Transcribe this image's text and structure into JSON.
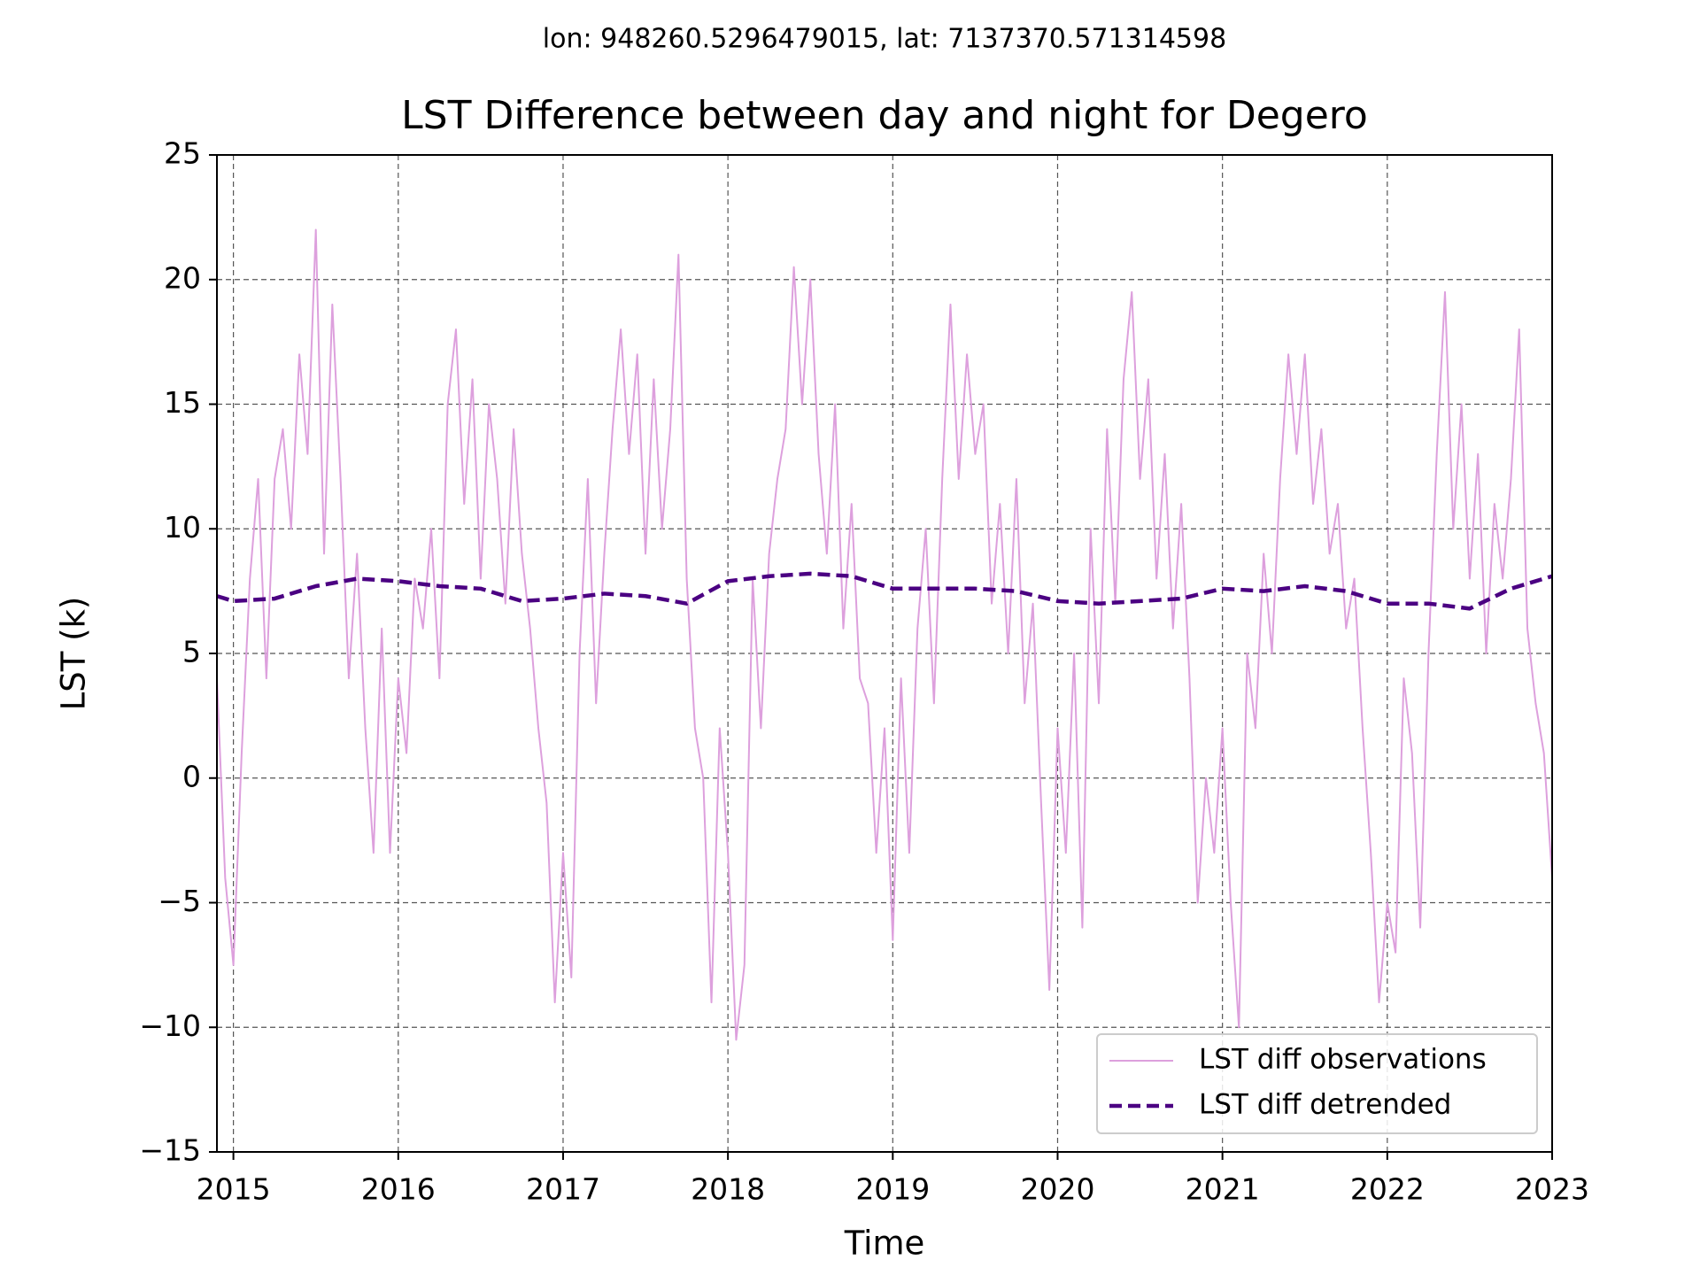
{
  "chart_data": {
    "type": "line",
    "subtitle": "lon: 948260.5296479015, lat: 7137370.571314598",
    "title": "LST Difference between day and night for Degero",
    "x_label": "Time",
    "y_label": "LST (k)",
    "xlim": [
      2014.9,
      2023
    ],
    "xticks": [
      2015,
      2016,
      2017,
      2018,
      2019,
      2020,
      2021,
      2022,
      2023
    ],
    "ylim": [
      -15,
      25
    ],
    "yticks": [
      {
        "value": -15,
        "label": "−15"
      },
      {
        "value": -10,
        "label": "−10"
      },
      {
        "value": -5,
        "label": "−5"
      },
      0,
      5,
      10,
      15,
      20,
      25
    ],
    "grid": true,
    "legend": "lower right",
    "series": [
      {
        "name": "LST diff observations",
        "color": "#dda0dd",
        "style": "solid",
        "x": [
          2014.9,
          2014.95,
          2015,
          2015.05,
          2015.1,
          2015.15,
          2015.2,
          2015.25,
          2015.3,
          2015.35,
          2015.4,
          2015.45,
          2015.5,
          2015.55,
          2015.6,
          2015.65,
          2015.7,
          2015.75,
          2015.8,
          2015.85,
          2015.9,
          2015.95,
          2016,
          2016.05,
          2016.1,
          2016.15,
          2016.2,
          2016.25,
          2016.3,
          2016.35,
          2016.4,
          2016.45,
          2016.5,
          2016.55,
          2016.6,
          2016.65,
          2016.7,
          2016.75,
          2016.8,
          2016.85,
          2016.9,
          2016.95,
          2017,
          2017.05,
          2017.1,
          2017.15,
          2017.2,
          2017.25,
          2017.3,
          2017.35,
          2017.4,
          2017.45,
          2017.5,
          2017.55,
          2017.6,
          2017.65,
          2017.7,
          2017.75,
          2017.8,
          2017.85,
          2017.9,
          2017.95,
          2018,
          2018.05,
          2018.1,
          2018.15,
          2018.2,
          2018.25,
          2018.3,
          2018.35,
          2018.4,
          2018.45,
          2018.5,
          2018.55,
          2018.6,
          2018.65,
          2018.7,
          2018.75,
          2018.8,
          2018.85,
          2018.9,
          2018.95,
          2019,
          2019.05,
          2019.1,
          2019.15,
          2019.2,
          2019.25,
          2019.3,
          2019.35,
          2019.4,
          2019.45,
          2019.5,
          2019.55,
          2019.6,
          2019.65,
          2019.7,
          2019.75,
          2019.8,
          2019.85,
          2019.9,
          2019.95,
          2020,
          2020.05,
          2020.1,
          2020.15,
          2020.2,
          2020.25,
          2020.3,
          2020.35,
          2020.4,
          2020.45,
          2020.5,
          2020.55,
          2020.6,
          2020.65,
          2020.7,
          2020.75,
          2020.8,
          2020.85,
          2020.9,
          2020.95,
          2021,
          2021.05,
          2021.1,
          2021.15,
          2021.2,
          2021.25,
          2021.3,
          2021.35,
          2021.4,
          2021.45,
          2021.5,
          2021.55,
          2021.6,
          2021.65,
          2021.7,
          2021.75,
          2021.8,
          2021.85,
          2021.9,
          2021.95,
          2022,
          2022.05,
          2022.1,
          2022.15,
          2022.2,
          2022.25,
          2022.3,
          2022.35,
          2022.4,
          2022.45,
          2022.5,
          2022.55,
          2022.6,
          2022.65,
          2022.7,
          2022.75,
          2022.8,
          2022.85,
          2022.9,
          2022.95,
          2023
        ],
        "values": [
          4,
          -4,
          -7.5,
          1,
          8,
          12,
          4,
          12,
          14,
          10,
          17,
          13,
          22,
          9,
          19,
          12,
          4,
          9,
          2,
          -3,
          6,
          -3,
          4,
          1,
          8,
          6,
          10,
          4,
          15,
          18,
          11,
          16,
          8,
          15,
          12,
          7,
          14,
          9,
          6,
          2,
          -1,
          -9,
          -3,
          -8,
          5,
          12,
          3,
          9,
          14,
          18,
          13,
          17,
          9,
          16,
          10,
          14,
          21,
          8,
          2,
          0,
          -9,
          2,
          -3,
          -10.5,
          -7.5,
          8,
          2,
          9,
          12,
          14,
          20.5,
          15,
          20,
          13,
          9,
          15,
          6,
          11,
          4,
          3,
          -3,
          2,
          -6.5,
          4,
          -3,
          6,
          10,
          3,
          12,
          19,
          12,
          17,
          13,
          15,
          7,
          11,
          5,
          12,
          3,
          7,
          -1,
          -8.5,
          2,
          -3,
          5,
          -6,
          10,
          3,
          14,
          7,
          16,
          19.5,
          12,
          16,
          8,
          13,
          6,
          11,
          4,
          -5,
          0,
          -3,
          2,
          -5,
          -10,
          5,
          2,
          9,
          5,
          12,
          17,
          13,
          17,
          11,
          14,
          9,
          11,
          6,
          8,
          2,
          -3,
          -9,
          -5,
          -7,
          4,
          1,
          -6,
          5,
          13,
          19.5,
          10,
          15,
          8,
          13,
          5,
          11,
          8,
          12,
          18,
          6,
          3,
          1,
          -4
        ]
      },
      {
        "name": "LST diff detrended",
        "color": "#4b0082",
        "style": "dashed",
        "x": [
          2014.9,
          2015,
          2015.25,
          2015.5,
          2015.75,
          2016,
          2016.25,
          2016.5,
          2016.75,
          2017,
          2017.25,
          2017.5,
          2017.75,
          2018,
          2018.25,
          2018.5,
          2018.75,
          2019,
          2019.25,
          2019.5,
          2019.75,
          2020,
          2020.25,
          2020.5,
          2020.75,
          2021,
          2021.25,
          2021.5,
          2021.75,
          2022,
          2022.25,
          2022.5,
          2022.75,
          2023
        ],
        "values": [
          7.3,
          7.1,
          7.2,
          7.7,
          8.0,
          7.9,
          7.7,
          7.6,
          7.1,
          7.2,
          7.4,
          7.3,
          7.0,
          7.9,
          8.1,
          8.2,
          8.1,
          7.6,
          7.6,
          7.6,
          7.5,
          7.1,
          7.0,
          7.1,
          7.2,
          7.6,
          7.5,
          7.7,
          7.5,
          7.0,
          7.0,
          6.8,
          7.6,
          8.1
        ]
      }
    ]
  }
}
